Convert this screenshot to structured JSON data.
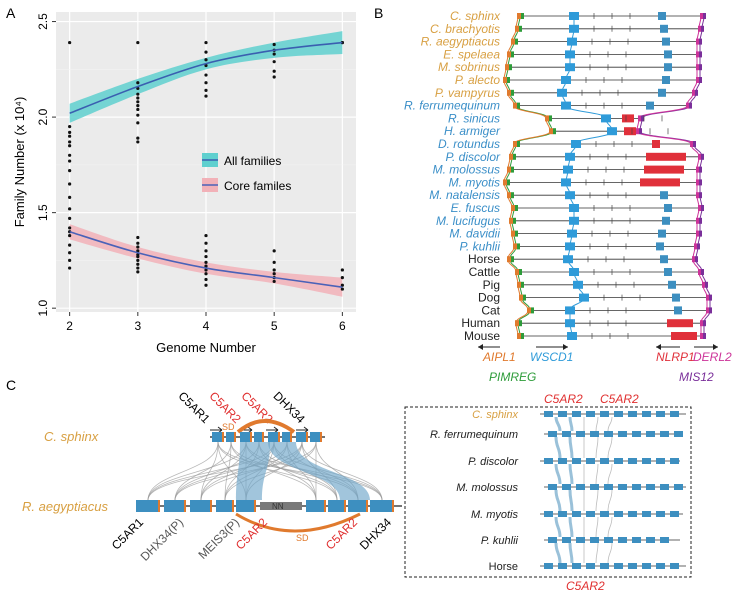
{
  "panel_labels": {
    "a": "A",
    "b": "B",
    "c": "C"
  },
  "colors": {
    "all_line": "#3a5fb0",
    "all_band": "#5fd0cf",
    "core_line": "#4a62b8",
    "core_band": "#f2b1b8",
    "bat_yinpterochiroptera": "#d8a043",
    "bat_yangochiroptera": "#3b8fc8",
    "other_mammal": "#222222",
    "gene_aipl1": "#e07a2e",
    "gene_pimreg": "#2e9c3a",
    "gene_wscd1": "#2f9bd9",
    "gene_nlrp1": "#e0303a",
    "gene_mis12": "#7a2f9a",
    "gene_derl2": "#cc3399",
    "gene_box": "#3d8fc0",
    "sd_arc": "#e07a2e",
    "c5ar2_label": "#e03030"
  },
  "chart_data": {
    "type": "scatter",
    "xlabel": "Genome Number",
    "ylabel": "Family Number (x 10⁴)",
    "x_ticks": [
      "2",
      "3",
      "4",
      "5",
      "6"
    ],
    "y_ticks": [
      "1.0",
      "1.5",
      "2.0",
      "2.5"
    ],
    "xlim": [
      1.8,
      6.2
    ],
    "ylim": [
      0.98,
      2.55
    ],
    "grid": true,
    "legend_position": "middle-right",
    "series": [
      {
        "name": "All families",
        "fit": [
          [
            2,
            2.02
          ],
          [
            3,
            2.16
          ],
          [
            4,
            2.28
          ],
          [
            5,
            2.35
          ],
          [
            6,
            2.39
          ]
        ],
        "ci_upper": [
          [
            2,
            2.07
          ],
          [
            3,
            2.2
          ],
          [
            4,
            2.31
          ],
          [
            5,
            2.39
          ],
          [
            6,
            2.45
          ]
        ],
        "ci_lower": [
          [
            2,
            1.97
          ],
          [
            3,
            2.12
          ],
          [
            4,
            2.25
          ],
          [
            5,
            2.31
          ],
          [
            6,
            2.33
          ]
        ],
        "points": [
          [
            2,
            2.39
          ],
          [
            2,
            1.95
          ],
          [
            2,
            1.92
          ],
          [
            2,
            1.9
          ],
          [
            2,
            1.87
          ],
          [
            2,
            1.85
          ],
          [
            2,
            1.8
          ],
          [
            2,
            1.77
          ],
          [
            2,
            1.72
          ],
          [
            3,
            2.39
          ],
          [
            3,
            2.18
          ],
          [
            3,
            2.15
          ],
          [
            3,
            2.12
          ],
          [
            3,
            2.1
          ],
          [
            3,
            2.08
          ],
          [
            3,
            2.06
          ],
          [
            3,
            2.04
          ],
          [
            3,
            2.01
          ],
          [
            3,
            1.97
          ],
          [
            3,
            1.89
          ],
          [
            3,
            1.87
          ],
          [
            4,
            2.39
          ],
          [
            4,
            2.34
          ],
          [
            4,
            2.3
          ],
          [
            4,
            2.27
          ],
          [
            4,
            2.22
          ],
          [
            4,
            2.18
          ],
          [
            4,
            2.14
          ],
          [
            4,
            2.11
          ],
          [
            5,
            2.38
          ],
          [
            5,
            2.35
          ],
          [
            5,
            2.33
          ],
          [
            5,
            2.29
          ],
          [
            5,
            2.24
          ],
          [
            5,
            2.21
          ],
          [
            6,
            2.39
          ],
          [
            6,
            2.39
          ]
        ]
      },
      {
        "name": "Core familes",
        "fit": [
          [
            2,
            1.4
          ],
          [
            3,
            1.29
          ],
          [
            4,
            1.21
          ],
          [
            5,
            1.16
          ],
          [
            6,
            1.11
          ]
        ],
        "ci_upper": [
          [
            2,
            1.44
          ],
          [
            3,
            1.32
          ],
          [
            4,
            1.24
          ],
          [
            5,
            1.19
          ],
          [
            6,
            1.16
          ]
        ],
        "ci_lower": [
          [
            2,
            1.36
          ],
          [
            3,
            1.26
          ],
          [
            4,
            1.18
          ],
          [
            5,
            1.13
          ],
          [
            6,
            1.06
          ]
        ],
        "points": [
          [
            2,
            1.65
          ],
          [
            2,
            1.58
          ],
          [
            2,
            1.52
          ],
          [
            2,
            1.47
          ],
          [
            2,
            1.42
          ],
          [
            2,
            1.4
          ],
          [
            2,
            1.38
          ],
          [
            2,
            1.33
          ],
          [
            2,
            1.29
          ],
          [
            2,
            1.25
          ],
          [
            2,
            1.21
          ],
          [
            3,
            1.37
          ],
          [
            3,
            1.34
          ],
          [
            3,
            1.32
          ],
          [
            3,
            1.3
          ],
          [
            3,
            1.28
          ],
          [
            3,
            1.27
          ],
          [
            3,
            1.25
          ],
          [
            3,
            1.23
          ],
          [
            3,
            1.21
          ],
          [
            3,
            1.19
          ],
          [
            4,
            1.38
          ],
          [
            4,
            1.34
          ],
          [
            4,
            1.3
          ],
          [
            4,
            1.27
          ],
          [
            4,
            1.24
          ],
          [
            4,
            1.22
          ],
          [
            4,
            1.2
          ],
          [
            4,
            1.18
          ],
          [
            4,
            1.15
          ],
          [
            4,
            1.12
          ],
          [
            5,
            1.3
          ],
          [
            5,
            1.24
          ],
          [
            5,
            1.2
          ],
          [
            5,
            1.18
          ],
          [
            5,
            1.16
          ],
          [
            5,
            1.14
          ],
          [
            6,
            1.2
          ],
          [
            6,
            1.16
          ],
          [
            6,
            1.12
          ],
          [
            6,
            1.1
          ]
        ]
      }
    ]
  },
  "panel_b": {
    "species": [
      {
        "name": "C. sphinx",
        "group": "yin"
      },
      {
        "name": "C. brachyotis",
        "group": "yin"
      },
      {
        "name": "R. aegyptiacus",
        "group": "yin"
      },
      {
        "name": "E. spelaea",
        "group": "yin"
      },
      {
        "name": "M. sobrinus",
        "group": "yin"
      },
      {
        "name": "P. alecto",
        "group": "yin"
      },
      {
        "name": "P. vampyrus",
        "group": "yin"
      },
      {
        "name": "R. ferrumequinum",
        "group": "yang"
      },
      {
        "name": "R. sinicus",
        "group": "yang"
      },
      {
        "name": "H. armiger",
        "group": "yang"
      },
      {
        "name": "D. rotundus",
        "group": "yang"
      },
      {
        "name": "P. discolor",
        "group": "yang"
      },
      {
        "name": "M. molossus",
        "group": "yang"
      },
      {
        "name": "M. myotis",
        "group": "yang"
      },
      {
        "name": "M. natalensis",
        "group": "yang"
      },
      {
        "name": "E. fuscus",
        "group": "yang"
      },
      {
        "name": "M. lucifugus",
        "group": "yang"
      },
      {
        "name": "M. davidii",
        "group": "yang"
      },
      {
        "name": "P. kuhlii",
        "group": "yang"
      },
      {
        "name": "Horse",
        "group": "other"
      },
      {
        "name": "Cattle",
        "group": "other"
      },
      {
        "name": "Pig",
        "group": "other"
      },
      {
        "name": "Dog",
        "group": "other"
      },
      {
        "name": "Cat",
        "group": "other"
      },
      {
        "name": "Human",
        "group": "other"
      },
      {
        "name": "Mouse",
        "group": "other"
      }
    ],
    "gene_labels": {
      "aipl1": "AIPL1",
      "pimreg": "PIMREG",
      "wscd1": "WSCD1",
      "nlrp1": "NLRP1",
      "mis12": "MIS12",
      "derl2": "DERL2"
    }
  },
  "panel_c": {
    "species_top": "C. sphinx",
    "species_bottom": "R. aegyptiacus",
    "top_genes": [
      "C5AR1",
      "C5AR2",
      "C5AR2",
      "DHX34"
    ],
    "bottom_genes": [
      "C5AR1",
      "DHX34(P)",
      "MEIS3(P)",
      "C5AR2",
      "C5AR2",
      "DHX34"
    ],
    "sd_label": "SD",
    "gap_label": "NN",
    "inset": {
      "species": [
        "C. sphinx",
        "R. ferrumequinum",
        "P. discolor",
        "M. molossus",
        "M. myotis",
        "P. kuhlii",
        "Horse"
      ],
      "top_labels": [
        "C5AR2",
        "C5AR2"
      ],
      "bottom_label": "C5AR2"
    }
  }
}
